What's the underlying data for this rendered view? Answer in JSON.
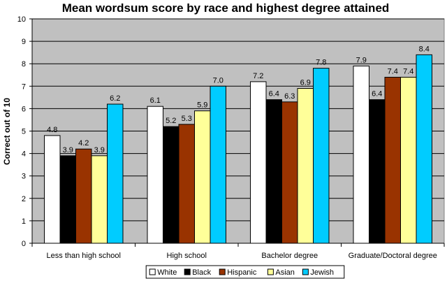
{
  "chart_data": {
    "type": "bar",
    "title": "Mean wordsum score by race and highest degree attained",
    "xlabel": "",
    "ylabel": "Correct out of 10",
    "ylim": [
      0,
      10
    ],
    "yticks": [
      0,
      1,
      2,
      3,
      4,
      5,
      6,
      7,
      8,
      9,
      10
    ],
    "grid": true,
    "legend_position": "bottom",
    "plot_background": "#c0c0c0",
    "categories": [
      "Less than high school",
      "High school",
      "Bachelor degree",
      "Graduate/Doctoral degree"
    ],
    "series": [
      {
        "name": "White",
        "color": "#ffffff",
        "values": [
          4.8,
          6.1,
          7.2,
          7.9
        ],
        "labels": [
          "4.8",
          "6.1",
          "7.2",
          "7.9"
        ]
      },
      {
        "name": "Black",
        "color": "#000000",
        "values": [
          3.9,
          5.2,
          6.4,
          6.4
        ],
        "labels": [
          "3.9",
          "5.2",
          "6.4",
          "6.4"
        ]
      },
      {
        "name": "Hispanic",
        "color": "#993300",
        "values": [
          4.2,
          5.3,
          6.3,
          7.4
        ],
        "labels": [
          "4.2",
          "5.3",
          "6.3",
          "7.4"
        ]
      },
      {
        "name": "Asian",
        "color": "#ffff99",
        "values": [
          3.9,
          5.9,
          6.9,
          7.4
        ],
        "labels": [
          "3.9",
          "5.9",
          "6.9",
          "7.4"
        ]
      },
      {
        "name": "Jewish",
        "color": "#00ccff",
        "values": [
          6.2,
          7.0,
          7.8,
          8.4
        ],
        "labels": [
          "6.2",
          "7.0",
          "7.8",
          "8.4"
        ]
      }
    ]
  }
}
